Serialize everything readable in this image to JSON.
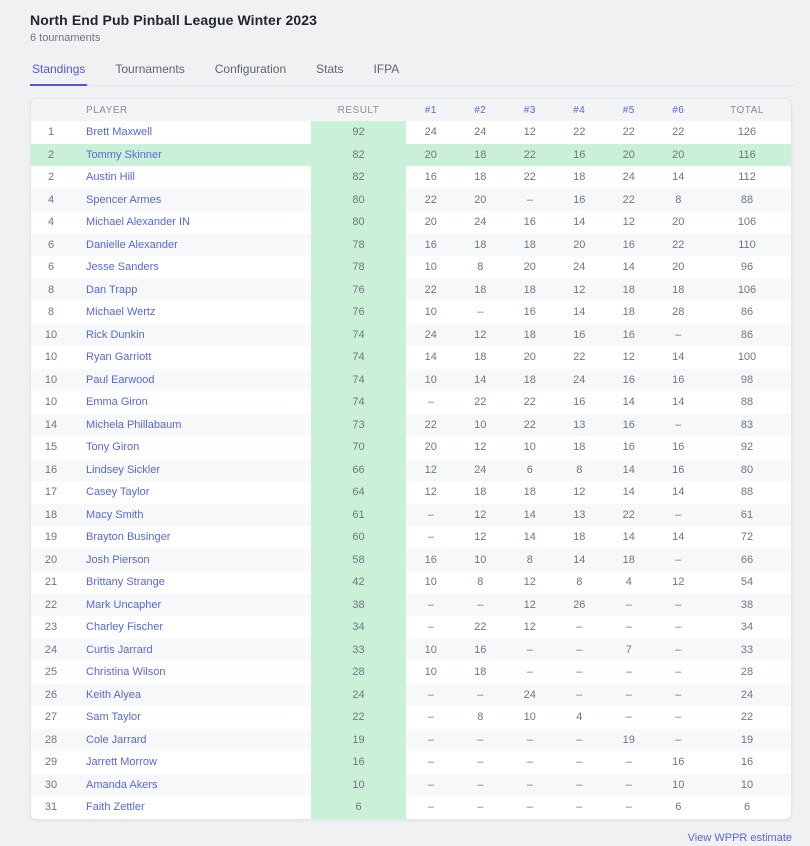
{
  "header": {
    "title": "North End Pub Pinball League Winter 2023",
    "subtitle": "6 tournaments"
  },
  "tabs": [
    {
      "label": "Standings",
      "active": true
    },
    {
      "label": "Tournaments",
      "active": false
    },
    {
      "label": "Configuration",
      "active": false
    },
    {
      "label": "Stats",
      "active": false
    },
    {
      "label": "IFPA",
      "active": false
    }
  ],
  "table": {
    "columns": [
      "PLAYER",
      "RESULT",
      "#1",
      "#2",
      "#3",
      "#4",
      "#5",
      "#6",
      "TOTAL"
    ],
    "rows": [
      {
        "rank": "1",
        "player": "Brett Maxwell",
        "result": "92",
        "scores": [
          "24",
          "24",
          "12",
          "22",
          "22",
          "22"
        ],
        "total": "126",
        "highlighted": false
      },
      {
        "rank": "2",
        "player": "Tommy Skinner",
        "result": "82",
        "scores": [
          "20",
          "18",
          "22",
          "16",
          "20",
          "20"
        ],
        "total": "116",
        "highlighted": true
      },
      {
        "rank": "2",
        "player": "Austin Hill",
        "result": "82",
        "scores": [
          "16",
          "18",
          "22",
          "18",
          "24",
          "14"
        ],
        "total": "112",
        "highlighted": false
      },
      {
        "rank": "4",
        "player": "Spencer Armes",
        "result": "80",
        "scores": [
          "22",
          "20",
          "–",
          "16",
          "22",
          "8"
        ],
        "total": "88",
        "highlighted": false
      },
      {
        "rank": "4",
        "player": "Michael Alexander IN",
        "result": "80",
        "scores": [
          "20",
          "24",
          "16",
          "14",
          "12",
          "20"
        ],
        "total": "106",
        "highlighted": false
      },
      {
        "rank": "6",
        "player": "Danielle Alexander",
        "result": "78",
        "scores": [
          "16",
          "18",
          "18",
          "20",
          "16",
          "22"
        ],
        "total": "110",
        "highlighted": false
      },
      {
        "rank": "6",
        "player": "Jesse Sanders",
        "result": "78",
        "scores": [
          "10",
          "8",
          "20",
          "24",
          "14",
          "20"
        ],
        "total": "96",
        "highlighted": false
      },
      {
        "rank": "8",
        "player": "Dan Trapp",
        "result": "76",
        "scores": [
          "22",
          "18",
          "18",
          "12",
          "18",
          "18"
        ],
        "total": "106",
        "highlighted": false
      },
      {
        "rank": "8",
        "player": "Michael Wertz",
        "result": "76",
        "scores": [
          "10",
          "–",
          "16",
          "14",
          "18",
          "28"
        ],
        "total": "86",
        "highlighted": false
      },
      {
        "rank": "10",
        "player": "Rick Dunkin",
        "result": "74",
        "scores": [
          "24",
          "12",
          "18",
          "16",
          "16",
          "–"
        ],
        "total": "86",
        "highlighted": false
      },
      {
        "rank": "10",
        "player": "Ryan Garriott",
        "result": "74",
        "scores": [
          "14",
          "18",
          "20",
          "22",
          "12",
          "14"
        ],
        "total": "100",
        "highlighted": false
      },
      {
        "rank": "10",
        "player": "Paul Earwood",
        "result": "74",
        "scores": [
          "10",
          "14",
          "18",
          "24",
          "16",
          "16"
        ],
        "total": "98",
        "highlighted": false
      },
      {
        "rank": "10",
        "player": "Emma Giron",
        "result": "74",
        "scores": [
          "–",
          "22",
          "22",
          "16",
          "14",
          "14"
        ],
        "total": "88",
        "highlighted": false
      },
      {
        "rank": "14",
        "player": "Michela Phillabaum",
        "result": "73",
        "scores": [
          "22",
          "10",
          "22",
          "13",
          "16",
          "–"
        ],
        "total": "83",
        "highlighted": false
      },
      {
        "rank": "15",
        "player": "Tony Giron",
        "result": "70",
        "scores": [
          "20",
          "12",
          "10",
          "18",
          "16",
          "16"
        ],
        "total": "92",
        "highlighted": false
      },
      {
        "rank": "16",
        "player": "Lindsey Sickler",
        "result": "66",
        "scores": [
          "12",
          "24",
          "6",
          "8",
          "14",
          "16"
        ],
        "total": "80",
        "highlighted": false
      },
      {
        "rank": "17",
        "player": "Casey Taylor",
        "result": "64",
        "scores": [
          "12",
          "18",
          "18",
          "12",
          "14",
          "14"
        ],
        "total": "88",
        "highlighted": false
      },
      {
        "rank": "18",
        "player": "Macy Smith",
        "result": "61",
        "scores": [
          "–",
          "12",
          "14",
          "13",
          "22",
          "–"
        ],
        "total": "61",
        "highlighted": false
      },
      {
        "rank": "19",
        "player": "Brayton Businger",
        "result": "60",
        "scores": [
          "–",
          "12",
          "14",
          "18",
          "14",
          "14"
        ],
        "total": "72",
        "highlighted": false
      },
      {
        "rank": "20",
        "player": "Josh Pierson",
        "result": "58",
        "scores": [
          "16",
          "10",
          "8",
          "14",
          "18",
          "–"
        ],
        "total": "66",
        "highlighted": false
      },
      {
        "rank": "21",
        "player": "Brittany Strange",
        "result": "42",
        "scores": [
          "10",
          "8",
          "12",
          "8",
          "4",
          "12"
        ],
        "total": "54",
        "highlighted": false
      },
      {
        "rank": "22",
        "player": "Mark Uncapher",
        "result": "38",
        "scores": [
          "–",
          "–",
          "12",
          "26",
          "–",
          "–"
        ],
        "total": "38",
        "highlighted": false
      },
      {
        "rank": "23",
        "player": "Charley Fischer",
        "result": "34",
        "scores": [
          "–",
          "22",
          "12",
          "–",
          "–",
          "–"
        ],
        "total": "34",
        "highlighted": false
      },
      {
        "rank": "24",
        "player": "Curtis Jarrard",
        "result": "33",
        "scores": [
          "10",
          "16",
          "–",
          "–",
          "7",
          "–"
        ],
        "total": "33",
        "highlighted": false
      },
      {
        "rank": "25",
        "player": "Christina Wilson",
        "result": "28",
        "scores": [
          "10",
          "18",
          "–",
          "–",
          "–",
          "–"
        ],
        "total": "28",
        "highlighted": false
      },
      {
        "rank": "26",
        "player": "Keith Alyea",
        "result": "24",
        "scores": [
          "–",
          "–",
          "24",
          "–",
          "–",
          "–"
        ],
        "total": "24",
        "highlighted": false
      },
      {
        "rank": "27",
        "player": "Sam Taylor",
        "result": "22",
        "scores": [
          "–",
          "8",
          "10",
          "4",
          "–",
          "–"
        ],
        "total": "22",
        "highlighted": false
      },
      {
        "rank": "28",
        "player": "Cole Jarrard",
        "result": "19",
        "scores": [
          "–",
          "–",
          "–",
          "–",
          "19",
          "–"
        ],
        "total": "19",
        "highlighted": false
      },
      {
        "rank": "29",
        "player": "Jarrett Morrow",
        "result": "16",
        "scores": [
          "–",
          "–",
          "–",
          "–",
          "–",
          "16"
        ],
        "total": "16",
        "highlighted": false
      },
      {
        "rank": "30",
        "player": "Amanda Akers",
        "result": "10",
        "scores": [
          "–",
          "–",
          "–",
          "–",
          "–",
          "10"
        ],
        "total": "10",
        "highlighted": false
      },
      {
        "rank": "31",
        "player": "Faith Zettler",
        "result": "6",
        "scores": [
          "–",
          "–",
          "–",
          "–",
          "–",
          "6"
        ],
        "total": "6",
        "highlighted": false
      }
    ]
  },
  "footer": {
    "link_label": "View WPPR estimate"
  },
  "colors": {
    "accent": "#5954d6",
    "link": "#5767d6",
    "result_bg": "#caf1d8",
    "header_row_bg": "#f3f4f6",
    "stripe_bg": "#f7f8fa",
    "page_bg": "#f0f1f3",
    "text_gray": "#6f7682"
  }
}
